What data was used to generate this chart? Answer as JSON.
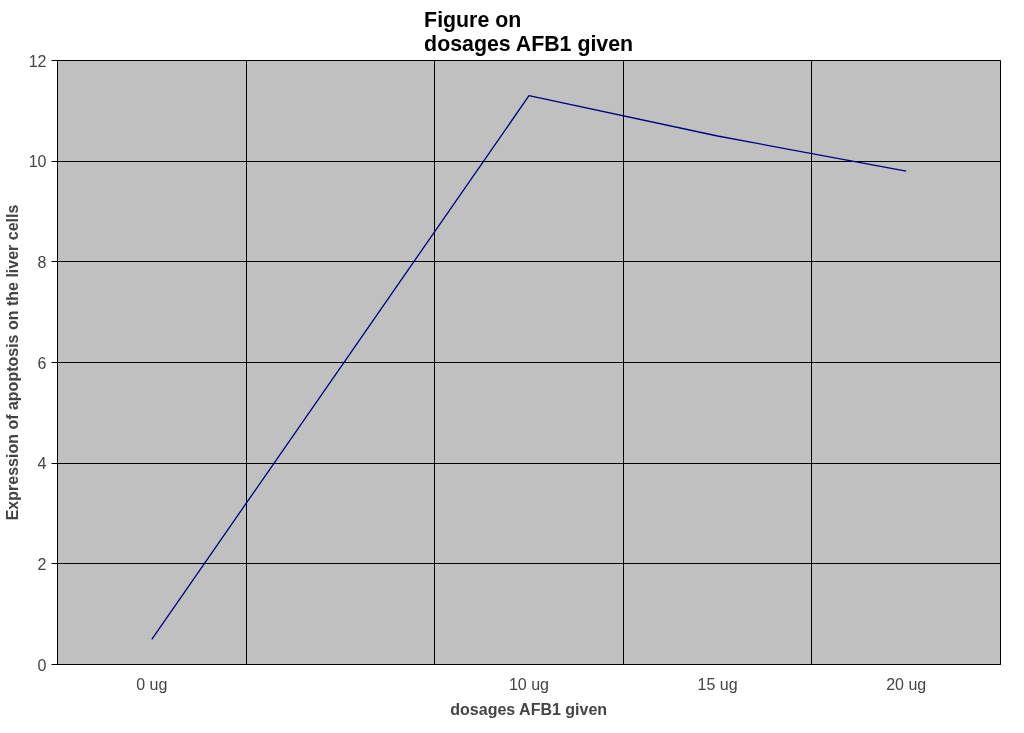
{
  "chart_data": {
    "type": "line",
    "title": "Figure on\ndosages AFB1 given",
    "xlabel": "dosages AFB1 given",
    "ylabel": "Expression of apoptosis on the liver cells",
    "categories": [
      "0 ug",
      null,
      "10 ug",
      "15 ug",
      "20 ug"
    ],
    "series": [
      {
        "color": "#000080",
        "values": [
          0.5,
          5.9,
          11.3,
          10.5,
          9.8
        ]
      }
    ],
    "ylim": [
      0,
      12
    ],
    "yticks": [
      0,
      2,
      4,
      6,
      8,
      10,
      12
    ],
    "grid": true,
    "marker": "none",
    "line_style": "solid"
  }
}
